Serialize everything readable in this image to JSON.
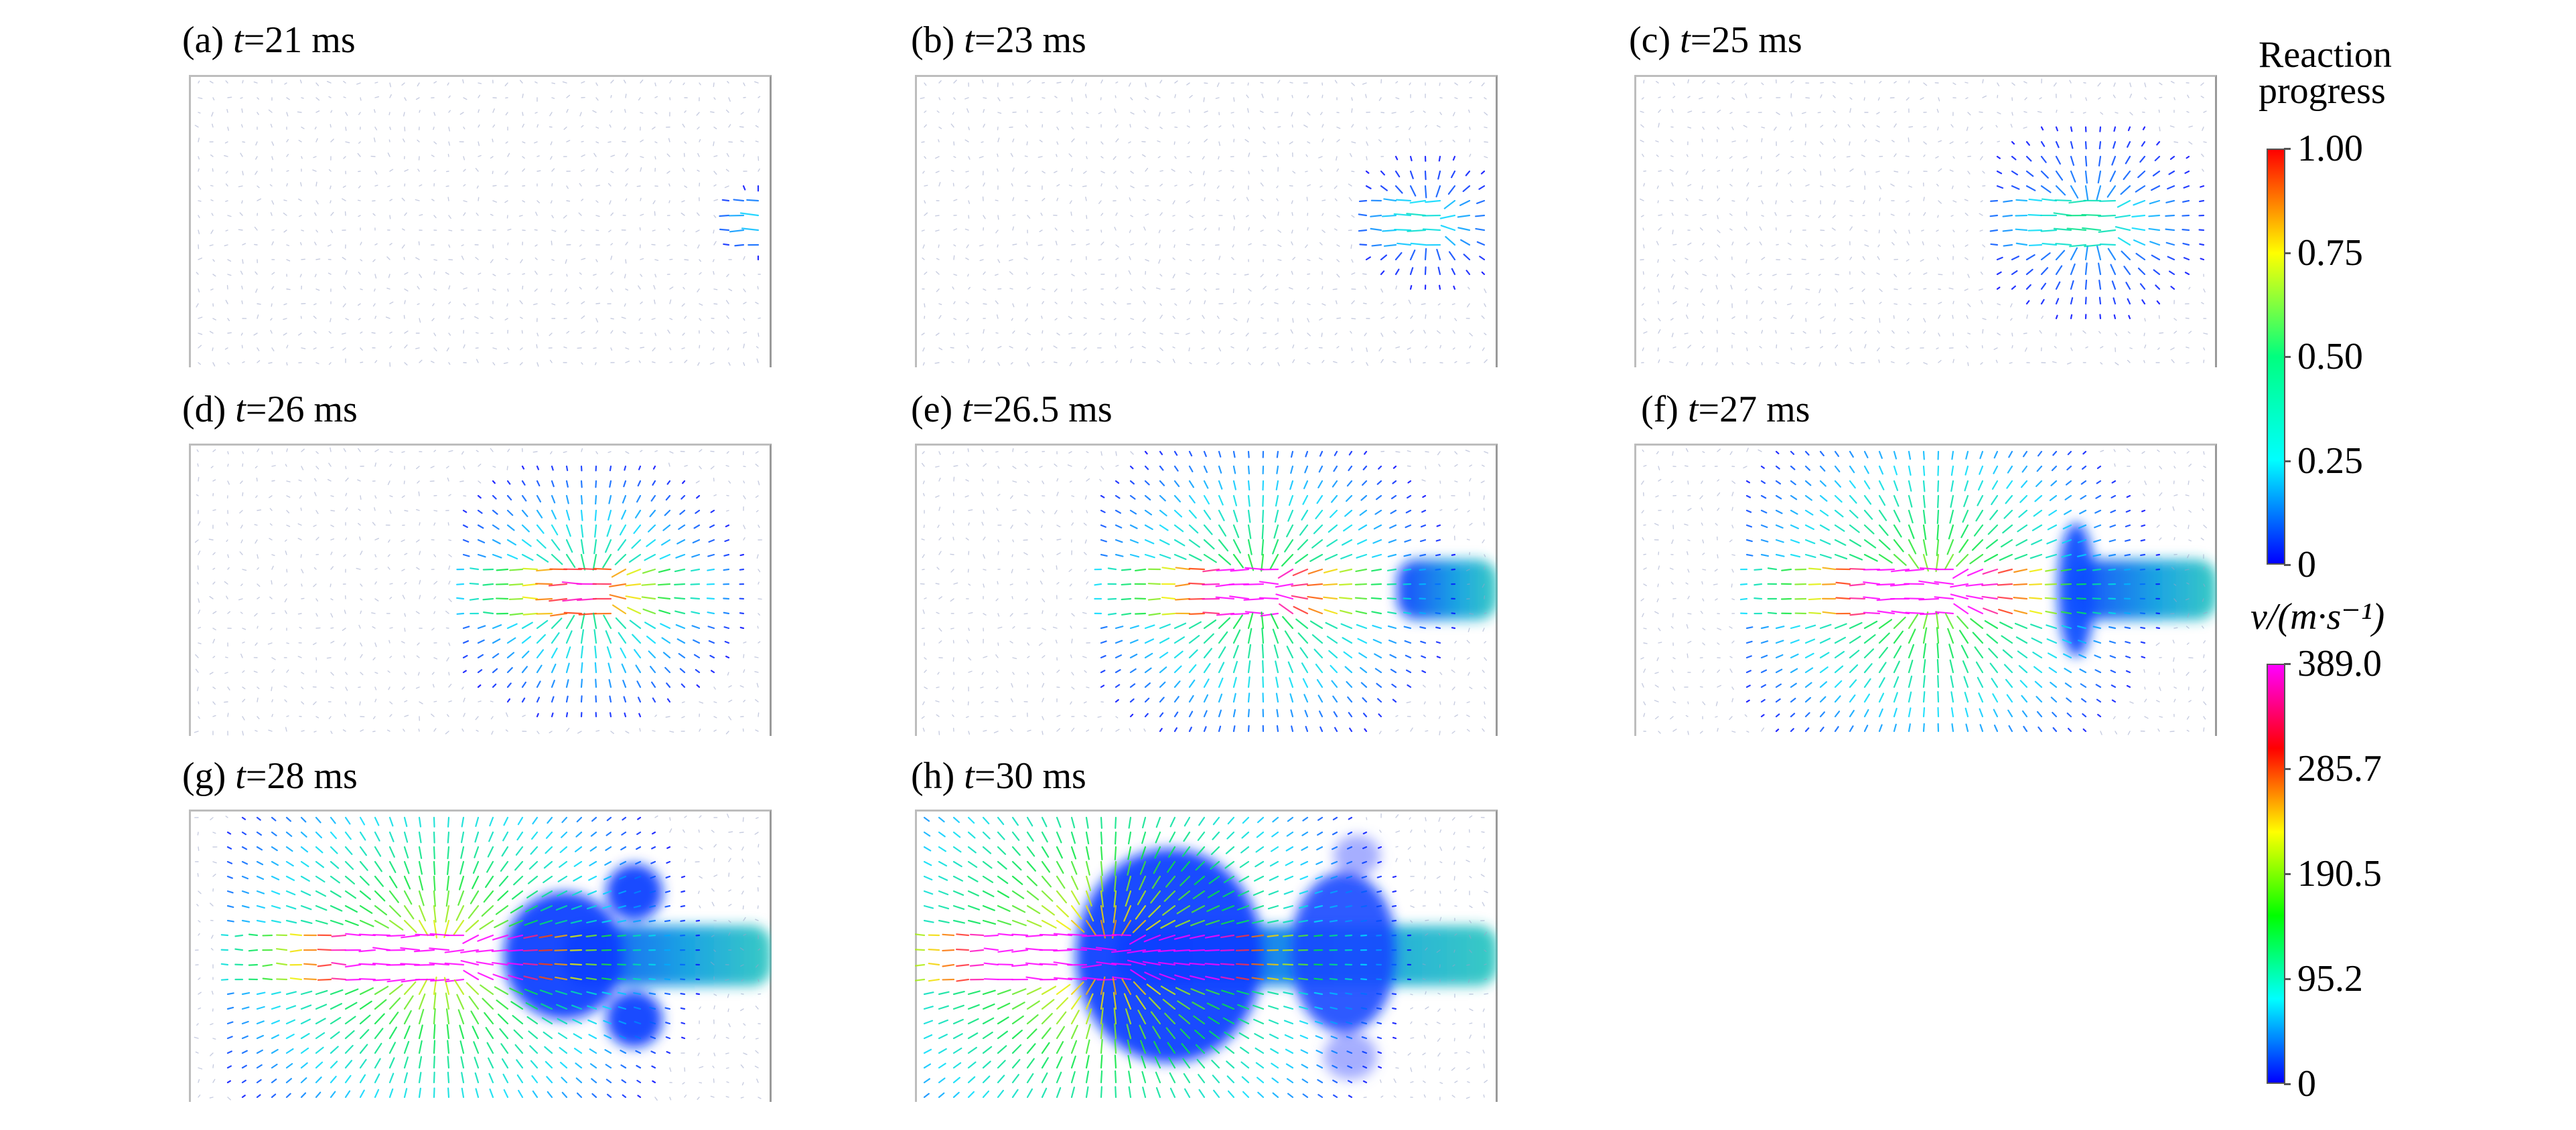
{
  "panels": [
    {
      "id": "a",
      "label": "(a) ",
      "t_symbol": "t",
      "t_value": "=21 ms",
      "stage": 0.0
    },
    {
      "id": "b",
      "label": "(b) ",
      "t_symbol": "t",
      "t_value": "=23 ms",
      "stage": 0.15
    },
    {
      "id": "c",
      "label": "(c) ",
      "t_symbol": "t",
      "t_value": "=25 ms",
      "stage": 0.3
    },
    {
      "id": "d",
      "label": "(d) ",
      "t_symbol": "t",
      "t_value": "=26 ms",
      "stage": 0.45
    },
    {
      "id": "e",
      "label": "(e) ",
      "t_symbol": "t",
      "t_value": "=26.5 ms",
      "stage": 0.6
    },
    {
      "id": "f",
      "label": "(f) ",
      "t_symbol": "t",
      "t_value": "=27 ms",
      "stage": 0.72
    },
    {
      "id": "g",
      "label": "(g) ",
      "t_symbol": "t",
      "t_value": "=28 ms",
      "stage": 0.85
    },
    {
      "id": "h",
      "label": "(h) ",
      "t_symbol": "t",
      "t_value": "=30 ms",
      "stage": 1.0
    }
  ],
  "colorbar_reaction": {
    "title_line1": "Reaction",
    "title_line2": "progress",
    "ticks": [
      "1.00",
      "0.75",
      "0.50",
      "0.25",
      "0"
    ],
    "colors": [
      "#ff0000",
      "#ffff00",
      "#00ff7f",
      "#00ffff",
      "#0000ff"
    ]
  },
  "colorbar_velocity": {
    "title": "v/(m·s⁻¹)",
    "ticks": [
      "389.0",
      "285.7",
      "190.5",
      "95.2",
      "0"
    ],
    "colors": [
      "#ff00ff",
      "#ff0000",
      "#ffff00",
      "#00ff00",
      "#00ffff",
      "#0000ff"
    ]
  }
}
